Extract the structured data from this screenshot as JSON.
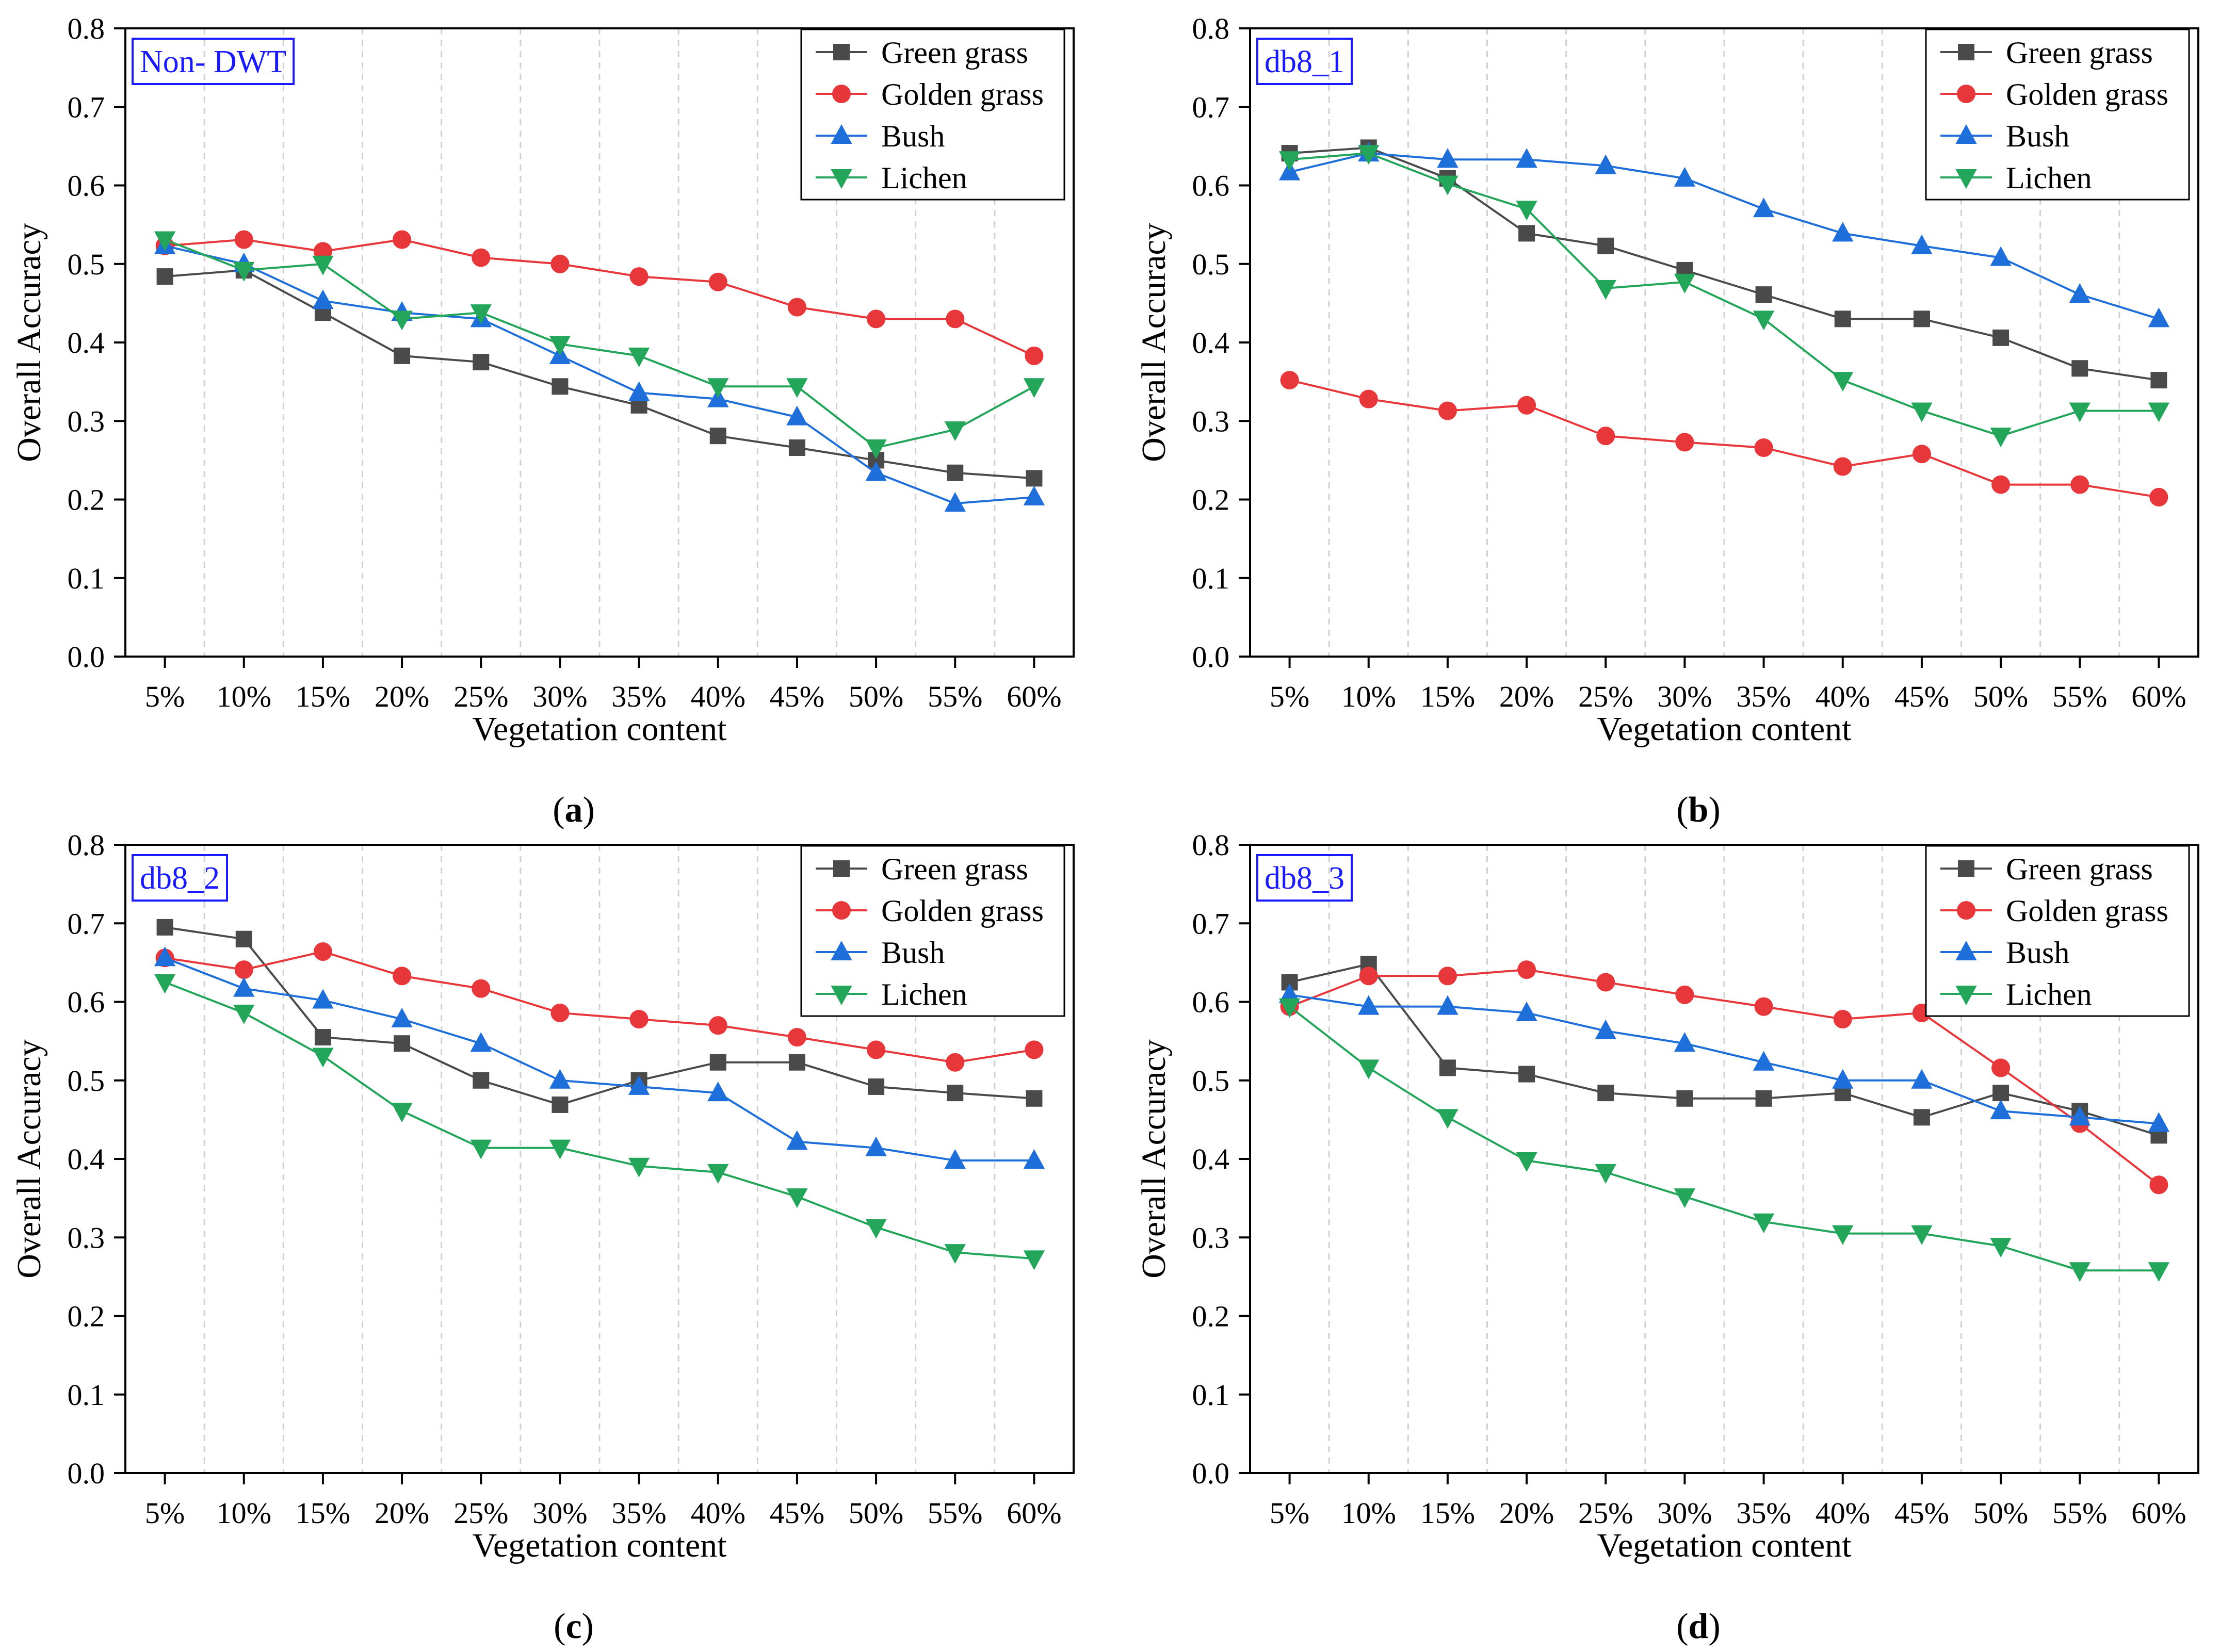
{
  "figure": {
    "x_axis_label": "Vegetation content",
    "y_axis_label": "Overall Accuracy",
    "series_colors": {
      "Green grass": "#4a4a4a",
      "Golden grass": "#e8373a",
      "Bush": "#1f6fdb",
      "Lichen": "#23a55a"
    },
    "series_markers": {
      "Green grass": "square",
      "Golden grass": "circle",
      "Bush": "triangle-up",
      "Lichen": "triangle-down"
    },
    "tag_color": "#1a1aff"
  },
  "chart_data": [
    {
      "type": "line",
      "panel": "a",
      "caption": "(a)",
      "tag": "Non- DWT",
      "categories": [
        "5%",
        "10%",
        "15%",
        "20%",
        "25%",
        "30%",
        "35%",
        "40%",
        "45%",
        "50%",
        "55%",
        "60%"
      ],
      "xlabel": "Vegetation content",
      "ylabel": "Overall Accuracy",
      "ylim": [
        0,
        0.8
      ],
      "yticks": [
        "0.0",
        "0.1",
        "0.2",
        "0.3",
        "0.4",
        "0.5",
        "0.6",
        "0.7",
        "0.8"
      ],
      "legend": "top-right",
      "series": [
        {
          "name": "Green grass",
          "values": [
            0.484,
            0.492,
            0.438,
            0.383,
            0.375,
            0.344,
            0.32,
            0.281,
            0.266,
            0.25,
            0.234,
            0.227
          ]
        },
        {
          "name": "Golden grass",
          "values": [
            0.523,
            0.531,
            0.516,
            0.531,
            0.508,
            0.5,
            0.484,
            0.477,
            0.445,
            0.43,
            0.43,
            0.383
          ]
        },
        {
          "name": "Bush",
          "values": [
            0.523,
            0.5,
            0.453,
            0.438,
            0.43,
            0.383,
            0.336,
            0.328,
            0.305,
            0.234,
            0.195,
            0.203
          ]
        },
        {
          "name": "Lichen",
          "values": [
            0.531,
            0.492,
            0.5,
            0.43,
            0.438,
            0.398,
            0.383,
            0.344,
            0.344,
            0.266,
            0.289,
            0.344
          ]
        }
      ]
    },
    {
      "type": "line",
      "panel": "b",
      "caption": "(b)",
      "tag": "db8_1",
      "categories": [
        "5%",
        "10%",
        "15%",
        "20%",
        "25%",
        "30%",
        "35%",
        "40%",
        "45%",
        "50%",
        "55%",
        "60%"
      ],
      "xlabel": "Vegetation content",
      "ylabel": "Overall Accuracy",
      "ylim": [
        0,
        0.8
      ],
      "yticks": [
        "0.0",
        "0.1",
        "0.2",
        "0.3",
        "0.4",
        "0.5",
        "0.6",
        "0.7",
        "0.8"
      ],
      "legend": "top-right",
      "series": [
        {
          "name": "Green grass",
          "values": [
            0.641,
            0.648,
            0.609,
            0.539,
            0.523,
            0.492,
            0.461,
            0.43,
            0.43,
            0.406,
            0.367,
            0.352
          ]
        },
        {
          "name": "Golden grass",
          "values": [
            0.352,
            0.328,
            0.313,
            0.32,
            0.281,
            0.273,
            0.266,
            0.242,
            0.258,
            0.219,
            0.219,
            0.203
          ]
        },
        {
          "name": "Bush",
          "values": [
            0.617,
            0.641,
            0.633,
            0.633,
            0.625,
            0.609,
            0.57,
            0.539,
            0.523,
            0.508,
            0.461,
            0.43
          ]
        },
        {
          "name": "Lichen",
          "values": [
            0.633,
            0.641,
            0.602,
            0.57,
            0.469,
            0.477,
            0.43,
            0.352,
            0.313,
            0.281,
            0.313,
            0.313
          ]
        }
      ]
    },
    {
      "type": "line",
      "panel": "c",
      "caption": "(c)",
      "tag": "db8_2",
      "categories": [
        "5%",
        "10%",
        "15%",
        "20%",
        "25%",
        "30%",
        "35%",
        "40%",
        "45%",
        "50%",
        "55%",
        "60%"
      ],
      "xlabel": "Vegetation content",
      "ylabel": "Overall Accuracy",
      "ylim": [
        0,
        0.8
      ],
      "yticks": [
        "0.0",
        "0.1",
        "0.2",
        "0.3",
        "0.4",
        "0.5",
        "0.6",
        "0.7",
        "0.8"
      ],
      "legend": "top-right",
      "series": [
        {
          "name": "Green grass",
          "values": [
            0.695,
            0.68,
            0.555,
            0.547,
            0.5,
            0.469,
            0.5,
            0.523,
            0.523,
            0.492,
            0.484,
            0.477
          ]
        },
        {
          "name": "Golden grass",
          "values": [
            0.656,
            0.641,
            0.664,
            0.633,
            0.617,
            0.586,
            0.578,
            0.57,
            0.555,
            0.539,
            0.523,
            0.539
          ]
        },
        {
          "name": "Bush",
          "values": [
            0.656,
            0.617,
            0.602,
            0.578,
            0.547,
            0.5,
            0.492,
            0.484,
            0.422,
            0.414,
            0.398,
            0.398
          ]
        },
        {
          "name": "Lichen",
          "values": [
            0.625,
            0.586,
            0.531,
            0.461,
            0.414,
            0.414,
            0.391,
            0.383,
            0.352,
            0.313,
            0.281,
            0.273
          ]
        }
      ]
    },
    {
      "type": "line",
      "panel": "d",
      "caption": "(d)",
      "tag": "db8_3",
      "categories": [
        "5%",
        "10%",
        "15%",
        "20%",
        "25%",
        "30%",
        "35%",
        "40%",
        "45%",
        "50%",
        "55%",
        "60%"
      ],
      "xlabel": "Vegetation content",
      "ylabel": "Overall Accuracy",
      "ylim": [
        0,
        0.8
      ],
      "yticks": [
        "0.0",
        "0.1",
        "0.2",
        "0.3",
        "0.4",
        "0.5",
        "0.6",
        "0.7",
        "0.8"
      ],
      "legend": "top-right",
      "series": [
        {
          "name": "Green grass",
          "values": [
            0.625,
            0.648,
            0.516,
            0.508,
            0.484,
            0.477,
            0.477,
            0.484,
            0.453,
            0.484,
            0.461,
            0.43
          ]
        },
        {
          "name": "Golden grass",
          "values": [
            0.594,
            0.633,
            0.633,
            0.641,
            0.625,
            0.609,
            0.594,
            0.578,
            0.586,
            0.516,
            0.445,
            0.367
          ]
        },
        {
          "name": "Bush",
          "values": [
            0.609,
            0.594,
            0.594,
            0.586,
            0.563,
            0.547,
            0.523,
            0.5,
            0.5,
            0.461,
            0.453,
            0.445
          ]
        },
        {
          "name": "Lichen",
          "values": [
            0.594,
            0.516,
            0.453,
            0.398,
            0.383,
            0.352,
            0.32,
            0.305,
            0.305,
            0.289,
            0.258,
            0.258
          ]
        }
      ]
    }
  ]
}
